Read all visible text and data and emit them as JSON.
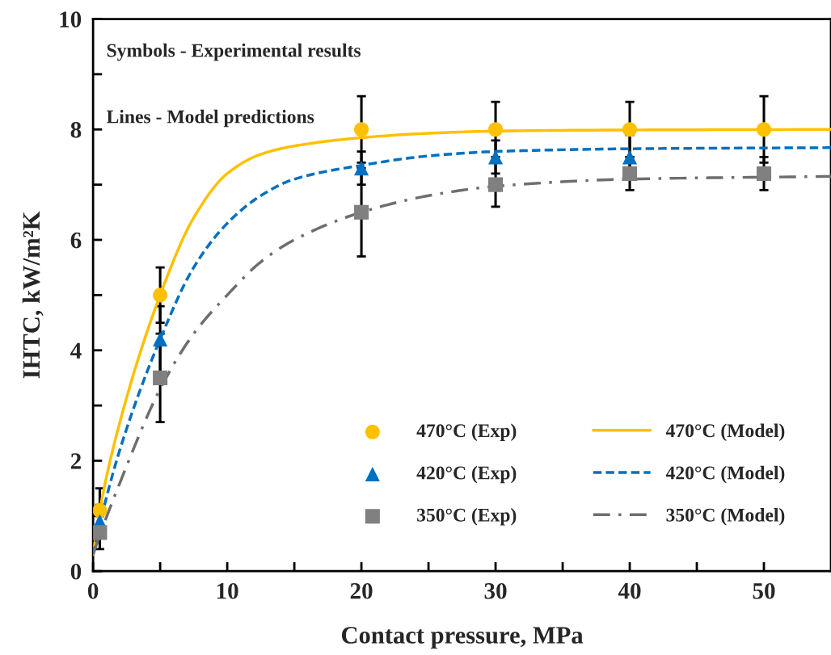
{
  "chart_data": {
    "type": "scatter",
    "xlabel": "Contact pressure, MPa",
    "ylabel": "IHTC, kW/m²K",
    "annotations": [
      "Symbols - Experimental results",
      "Lines - Model predictions"
    ],
    "xlim": [
      0,
      55
    ],
    "ylim": [
      0,
      10
    ],
    "xticks": [
      0,
      {
        "value": 5,
        "label": null
      },
      10,
      {
        "value": 15,
        "label": null
      },
      20,
      {
        "value": 25,
        "label": null
      },
      30,
      {
        "value": 35,
        "label": null
      },
      40,
      {
        "value": 45,
        "label": null
      },
      50
    ],
    "yticks": [
      0,
      {
        "value": 1,
        "label": null
      },
      2,
      {
        "value": 3,
        "label": null
      },
      4,
      {
        "value": 5,
        "label": null
      },
      6,
      {
        "value": 7,
        "label": null
      },
      8,
      {
        "value": 9,
        "label": null
      },
      10
    ],
    "grid": false,
    "legend": "bottom right",
    "series": [
      {
        "name": "470°C (Exp)",
        "marker": "circle",
        "color": "#ffc000",
        "x": [
          0.5,
          5,
          20,
          30,
          40,
          50
        ],
        "values": [
          1.1,
          5.0,
          8.0,
          8.0,
          8.0,
          8.0
        ],
        "errors": [
          0.4,
          0.5,
          0.6,
          0.5,
          0.5,
          0.6
        ]
      },
      {
        "name": "420°C (Exp)",
        "marker": "triangle",
        "color": "#0070c0",
        "x": [
          0.5,
          5,
          20,
          30,
          40
        ],
        "values": [
          0.9,
          4.2,
          7.3,
          7.5,
          7.5
        ],
        "errors": [
          0.3,
          0.6,
          0.3,
          0.3,
          0.4
        ]
      },
      {
        "name": "350°C (Exp)",
        "marker": "square",
        "color": "#808080",
        "x": [
          0.5,
          5,
          20,
          30,
          40,
          50
        ],
        "values": [
          0.7,
          3.5,
          6.5,
          7.0,
          7.2,
          7.2
        ],
        "errors": [
          0.3,
          0.8,
          0.8,
          0.4,
          0.3,
          0.3
        ]
      },
      {
        "name": "470°C (Model)",
        "type": "line",
        "line_style": "solid",
        "color": "#ffc000",
        "x": [
          0,
          0.5,
          2,
          5,
          7.5,
          10,
          12.5,
          15,
          20,
          25,
          30,
          40,
          55
        ],
        "values": [
          0.3,
          1.1,
          2.7,
          5.0,
          6.4,
          7.2,
          7.55,
          7.7,
          7.85,
          7.93,
          7.97,
          7.99,
          8.0
        ]
      },
      {
        "name": "420°C (Model)",
        "type": "line",
        "line_style": "dashed",
        "color": "#0070c0",
        "x": [
          0,
          0.5,
          2,
          5,
          7.5,
          10,
          12.5,
          15,
          20,
          25,
          30,
          40,
          55
        ],
        "values": [
          0.3,
          0.85,
          2.2,
          4.2,
          5.5,
          6.3,
          6.8,
          7.1,
          7.35,
          7.52,
          7.6,
          7.65,
          7.67
        ]
      },
      {
        "name": "350°C (Model)",
        "type": "line",
        "line_style": "dashdot",
        "color": "#6e6e6e",
        "x": [
          0,
          0.5,
          2,
          5,
          7.5,
          10,
          12.5,
          15,
          20,
          25,
          30,
          40,
          55
        ],
        "values": [
          0.3,
          0.65,
          1.6,
          3.3,
          4.3,
          5.0,
          5.6,
          6.0,
          6.5,
          6.8,
          6.97,
          7.1,
          7.15
        ]
      }
    ]
  }
}
